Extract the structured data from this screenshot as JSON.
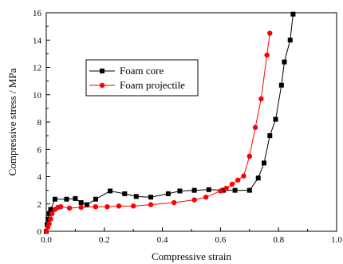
{
  "chart_data": {
    "type": "line",
    "xlabel": "Compressive strain",
    "ylabel": "Compressive stress / MPa",
    "xlim": [
      0,
      1.0
    ],
    "ylim": [
      0,
      16
    ],
    "xticks": [
      0,
      0.2,
      0.4,
      0.6,
      0.8,
      1.0
    ],
    "xtick_labels": [
      "0.0",
      "0.2",
      "0.4",
      "0.6",
      "0.8",
      "1.0"
    ],
    "yticks": [
      0,
      2,
      4,
      6,
      8,
      10,
      12,
      14,
      16
    ],
    "ytick_labels": [
      "0",
      "2",
      "4",
      "6",
      "8",
      "10",
      "12",
      "14",
      "16"
    ],
    "grid": false,
    "legend_position": "upper-left",
    "series": [
      {
        "name": "Foam core",
        "color": "#000000",
        "marker": "square",
        "x": [
          0.0,
          0.003,
          0.006,
          0.01,
          0.015,
          0.03,
          0.07,
          0.1,
          0.12,
          0.14,
          0.17,
          0.22,
          0.27,
          0.31,
          0.36,
          0.42,
          0.46,
          0.51,
          0.56,
          0.61,
          0.65,
          0.7,
          0.73,
          0.75,
          0.77,
          0.79,
          0.81,
          0.82,
          0.84,
          0.85
        ],
        "y": [
          0.0,
          0.5,
          0.9,
          1.3,
          1.6,
          2.35,
          2.35,
          2.4,
          2.1,
          1.95,
          2.35,
          2.95,
          2.75,
          2.55,
          2.5,
          2.75,
          2.95,
          3.0,
          3.05,
          3.0,
          3.0,
          3.0,
          3.9,
          5.0,
          7.0,
          8.2,
          10.7,
          12.4,
          14.0,
          15.9
        ]
      },
      {
        "name": "Foam projectile",
        "color": "#ff0000",
        "marker": "circle",
        "x": [
          0.0,
          0.005,
          0.01,
          0.015,
          0.02,
          0.03,
          0.04,
          0.05,
          0.08,
          0.12,
          0.17,
          0.21,
          0.25,
          0.3,
          0.36,
          0.44,
          0.51,
          0.55,
          0.6,
          0.62,
          0.64,
          0.66,
          0.68,
          0.7,
          0.72,
          0.74,
          0.76,
          0.77
        ],
        "y": [
          0.0,
          0.3,
          0.55,
          0.9,
          1.3,
          1.6,
          1.75,
          1.8,
          1.7,
          1.75,
          1.8,
          1.8,
          1.85,
          1.85,
          1.95,
          2.1,
          2.3,
          2.5,
          2.95,
          3.15,
          3.45,
          3.75,
          4.05,
          5.5,
          7.6,
          9.7,
          12.9,
          14.5
        ]
      }
    ]
  }
}
